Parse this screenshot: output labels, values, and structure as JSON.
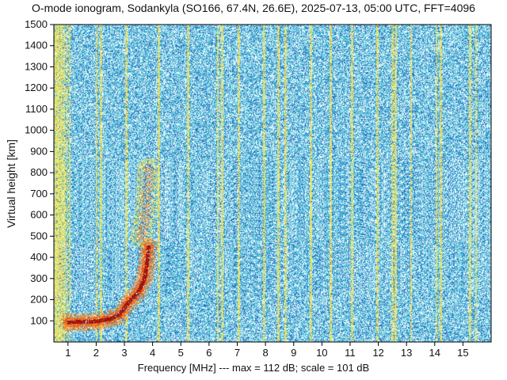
{
  "chart_data": {
    "type": "heatmap",
    "title": "O-mode ionogram, Sodankyla (SO166, 67.4N, 26.6E), 2025-07-13, 05:00 UTC, FFT=4096",
    "xlabel": "Frequency [MHz]",
    "x_caption_extra": "---   max = 112 dB; scale = 101 dB",
    "max_db": 112,
    "scale_db": 101,
    "ylabel": "Virtual height [km]",
    "xlim": [
      0.5,
      16
    ],
    "ylim": [
      0,
      1500
    ],
    "x_ticks": [
      1,
      2,
      3,
      4,
      5,
      6,
      7,
      8,
      9,
      10,
      11,
      12,
      13,
      14,
      15
    ],
    "y_ticks": [
      100,
      200,
      300,
      400,
      500,
      600,
      700,
      800,
      900,
      1000,
      1100,
      1200,
      1300,
      1400,
      1500
    ],
    "colors": {
      "background_noise": [
        "#2a6fc0",
        "#39a6d6",
        "#62cfe0",
        "#a8e6e8"
      ],
      "interference_line": [
        "#e0ef7a",
        "#f5d24a"
      ],
      "echo_strong": [
        "#c41a0a",
        "#8c0d05",
        "#e8501a",
        "#f28a2a"
      ]
    },
    "o_trace": [
      {
        "freq_mhz": 1.0,
        "height_km": 95
      },
      {
        "freq_mhz": 1.5,
        "height_km": 96
      },
      {
        "freq_mhz": 2.0,
        "height_km": 100
      },
      {
        "freq_mhz": 2.5,
        "height_km": 110
      },
      {
        "freq_mhz": 2.8,
        "height_km": 130
      },
      {
        "freq_mhz": 3.0,
        "height_km": 165
      },
      {
        "freq_mhz": 3.2,
        "height_km": 200
      },
      {
        "freq_mhz": 3.5,
        "height_km": 240
      },
      {
        "freq_mhz": 3.7,
        "height_km": 300
      },
      {
        "freq_mhz": 3.8,
        "height_km": 380
      },
      {
        "freq_mhz": 3.85,
        "height_km": 450
      }
    ],
    "diffuse_spread": [
      {
        "freq_mhz": 3.6,
        "height_km": 500
      },
      {
        "freq_mhz": 3.75,
        "height_km": 600
      },
      {
        "freq_mhz": 3.8,
        "height_km": 700
      },
      {
        "freq_mhz": 3.85,
        "height_km": 820
      }
    ],
    "vertical_interference_mhz": [
      0.55,
      0.65,
      0.75,
      0.85,
      1.05,
      2.0,
      2.15,
      3.05,
      4.2,
      5.25,
      6.3,
      6.45,
      7.05,
      7.95,
      8.45,
      8.7,
      9.6,
      10.3,
      11.05,
      11.95,
      12.5,
      12.6,
      13.15,
      14.05,
      14.2,
      15.25,
      15.45
    ]
  }
}
